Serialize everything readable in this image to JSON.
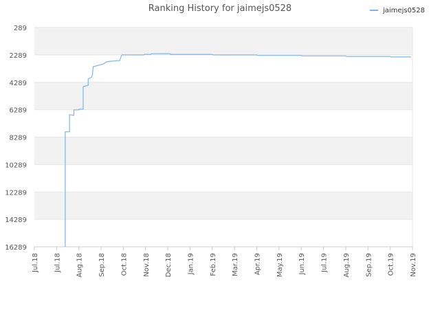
{
  "chart_data": {
    "type": "line",
    "title": "Ranking History for jaimejs0528",
    "xlabel": "",
    "ylabel": "",
    "y_inverted": true,
    "ylim": [
      16289,
      289
    ],
    "y_ticks": [
      289,
      2289,
      4289,
      6289,
      8289,
      10289,
      12289,
      14289,
      16289
    ],
    "x_ticks": [
      "Jul.18",
      "Jul.18",
      "Aug.18",
      "Sep.18",
      "Oct.18",
      "Nov.18",
      "Dec.18",
      "Jan.19",
      "Feb.19",
      "Mar.19",
      "Apr.19",
      "May.19",
      "Jun.19",
      "Jul.19",
      "Aug.19",
      "Sep.19",
      "Oct.19",
      "Nov.19"
    ],
    "grid": true,
    "legend_position": "top-right",
    "colors": {
      "series": "#7cb5ec",
      "band": "#f2f2f2",
      "grid": "#e6e6e6"
    },
    "series": [
      {
        "name": "jaimejs0528",
        "points": [
          [
            "2018-07-13",
            16289
          ],
          [
            "2018-07-13",
            7900
          ],
          [
            "2018-07-19",
            7900
          ],
          [
            "2018-07-19",
            6650
          ],
          [
            "2018-07-25",
            6700
          ],
          [
            "2018-07-25",
            6300
          ],
          [
            "2018-08-01",
            6300
          ],
          [
            "2018-08-01",
            6250
          ],
          [
            "2018-08-07",
            6250
          ],
          [
            "2018-08-07",
            4600
          ],
          [
            "2018-08-14",
            4500
          ],
          [
            "2018-08-14",
            4050
          ],
          [
            "2018-08-19",
            3900
          ],
          [
            "2018-08-20",
            3700
          ],
          [
            "2018-08-21",
            3150
          ],
          [
            "2018-08-28",
            3050
          ],
          [
            "2018-09-04",
            2950
          ],
          [
            "2018-09-08",
            2800
          ],
          [
            "2018-09-13",
            2750
          ],
          [
            "2018-09-26",
            2700
          ],
          [
            "2018-09-28",
            2400
          ],
          [
            "2018-09-29",
            2289
          ],
          [
            "2018-10-29",
            2289
          ],
          [
            "2018-10-30",
            2250
          ],
          [
            "2018-11-08",
            2250
          ],
          [
            "2018-11-09",
            2200
          ],
          [
            "2018-12-04",
            2200
          ],
          [
            "2018-12-05",
            2250
          ],
          [
            "2019-02-01",
            2250
          ],
          [
            "2019-02-02",
            2289
          ],
          [
            "2019-04-01",
            2289
          ],
          [
            "2019-04-02",
            2330
          ],
          [
            "2019-06-01",
            2330
          ],
          [
            "2019-06-02",
            2360
          ],
          [
            "2019-08-01",
            2360
          ],
          [
            "2019-08-02",
            2400
          ],
          [
            "2019-10-01",
            2400
          ],
          [
            "2019-10-02",
            2440
          ],
          [
            "2019-10-30",
            2440
          ]
        ]
      }
    ]
  }
}
